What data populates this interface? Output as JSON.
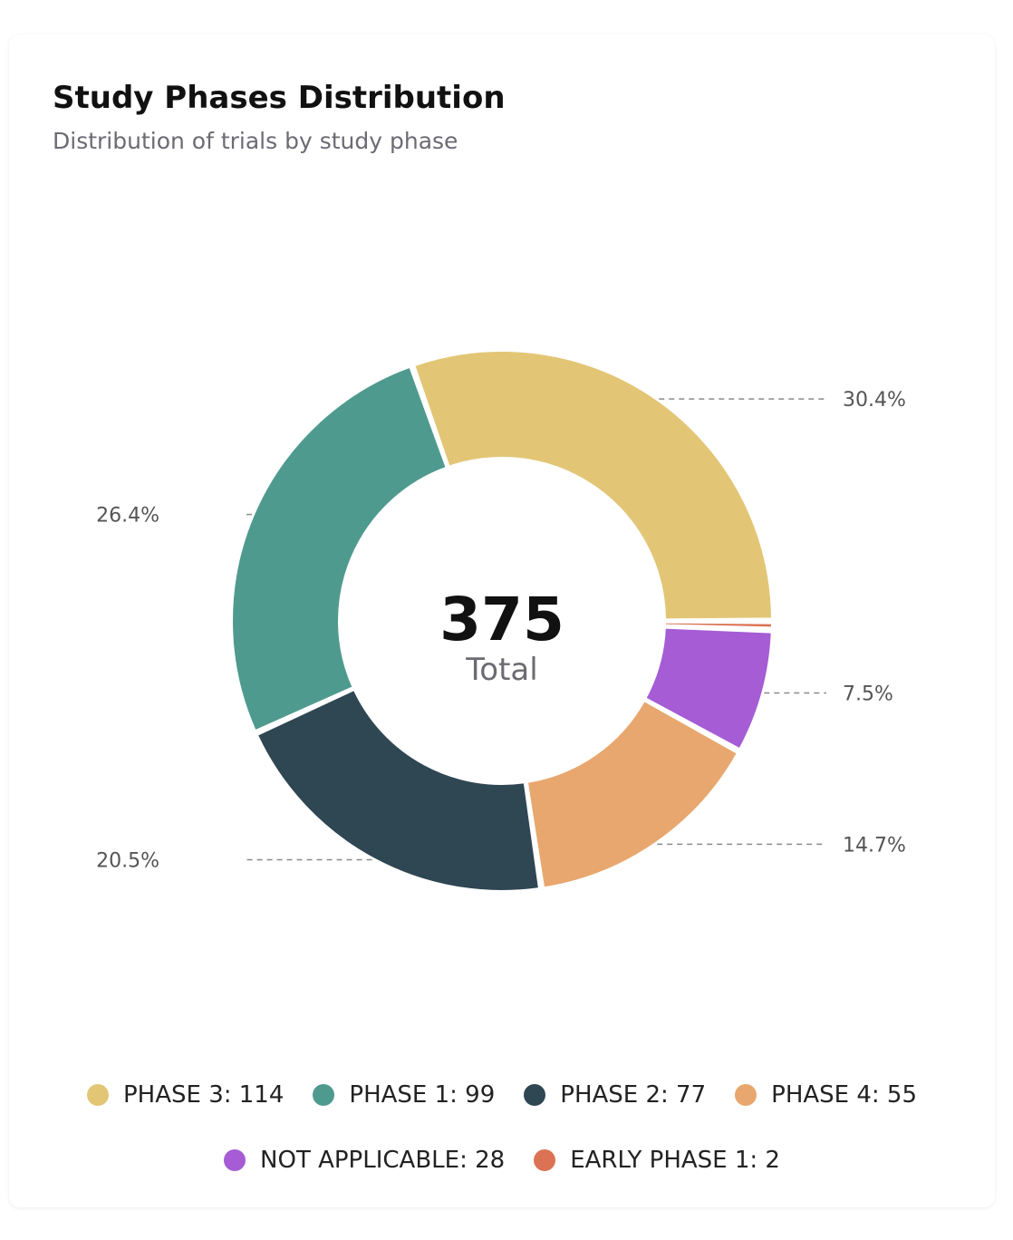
{
  "card": {
    "title": "Study Phases Distribution",
    "subtitle": "Distribution of trials by study phase"
  },
  "chart_data": {
    "type": "pie",
    "variant": "donut",
    "title": "Study Phases Distribution",
    "subtitle": "Distribution of trials by study phase",
    "center_value": "375",
    "center_label": "Total",
    "legend_position": "bottom",
    "slices": [
      {
        "name": "PHASE 3",
        "value": 114,
        "percent_label": "30.4%",
        "color": "#E2C676",
        "legend": "PHASE 3: 114"
      },
      {
        "name": "EARLY PHASE 1",
        "value": 2,
        "percent_label": "",
        "color": "#DC7254",
        "legend": "EARLY PHASE 1: 2"
      },
      {
        "name": "NOT APPLICABLE",
        "value": 28,
        "percent_label": "7.5%",
        "color": "#A55CD4",
        "legend": "NOT APPLICABLE: 28"
      },
      {
        "name": "PHASE 4",
        "value": 55,
        "percent_label": "14.7%",
        "color": "#E8A76E",
        "legend": "PHASE 4: 55"
      },
      {
        "name": "PHASE 2",
        "value": 77,
        "percent_label": "20.5%",
        "color": "#2F4653",
        "legend": "PHASE 2: 77"
      },
      {
        "name": "PHASE 1",
        "value": 99,
        "percent_label": "26.4%",
        "color": "#4F9A8E",
        "legend": "PHASE 1: 99"
      }
    ],
    "legend_rows": [
      [
        "PHASE 3",
        "PHASE 1",
        "PHASE 2",
        "PHASE 4"
      ],
      [
        "NOT APPLICABLE",
        "EARLY PHASE 1"
      ]
    ]
  }
}
